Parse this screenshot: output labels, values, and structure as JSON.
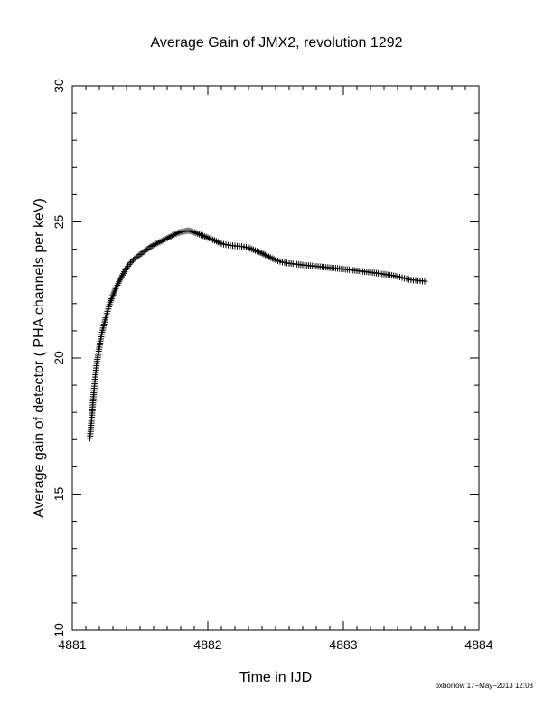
{
  "chart_data": {
    "type": "scatter",
    "title": "Average Gain of JMX2, revolution 1292",
    "xlabel": "Time in IJD",
    "ylabel": "Average gain of detector ( PHA channels per keV)",
    "xlim": [
      4881,
      4884
    ],
    "ylim": [
      10,
      30
    ],
    "x_ticks": [
      "4881",
      "4882",
      "4883",
      "4884"
    ],
    "y_ticks": [
      "10",
      "15",
      "20",
      "25",
      "30"
    ],
    "marker": "+",
    "grid": false,
    "legend": "none",
    "series": [
      {
        "points": [
          [
            4881.13,
            17.05
          ],
          [
            4881.135,
            17.3
          ],
          [
            4881.14,
            17.6
          ],
          [
            4881.145,
            17.9
          ],
          [
            4881.15,
            18.2
          ],
          [
            4881.155,
            18.5
          ],
          [
            4881.16,
            18.8
          ],
          [
            4881.165,
            19.05
          ],
          [
            4881.17,
            19.3
          ],
          [
            4881.175,
            19.55
          ],
          [
            4881.18,
            19.8
          ],
          [
            4881.19,
            20.1
          ],
          [
            4881.2,
            20.4
          ],
          [
            4881.21,
            20.7
          ],
          [
            4881.22,
            20.95
          ],
          [
            4881.235,
            21.25
          ],
          [
            4881.25,
            21.55
          ],
          [
            4881.265,
            21.8
          ],
          [
            4881.28,
            22.05
          ],
          [
            4881.3,
            22.3
          ],
          [
            4881.32,
            22.55
          ],
          [
            4881.345,
            22.8
          ],
          [
            4881.37,
            23.05
          ],
          [
            4881.4,
            23.3
          ],
          [
            4881.43,
            23.5
          ],
          [
            4881.46,
            23.65
          ],
          [
            4881.5,
            23.8
          ],
          [
            4881.54,
            23.95
          ],
          [
            4881.58,
            24.1
          ],
          [
            4881.62,
            24.2
          ],
          [
            4881.66,
            24.3
          ],
          [
            4881.7,
            24.4
          ],
          [
            4881.74,
            24.5
          ],
          [
            4881.78,
            24.6
          ],
          [
            4881.82,
            24.65
          ],
          [
            4881.86,
            24.68
          ],
          [
            4881.9,
            24.62
          ],
          [
            4881.95,
            24.52
          ],
          [
            4882.0,
            24.42
          ],
          [
            4882.05,
            24.32
          ],
          [
            4882.1,
            24.2
          ],
          [
            4882.15,
            24.15
          ],
          [
            4882.2,
            24.12
          ],
          [
            4882.25,
            24.1
          ],
          [
            4882.3,
            24.05
          ],
          [
            4882.35,
            23.95
          ],
          [
            4882.4,
            23.85
          ],
          [
            4882.45,
            23.72
          ],
          [
            4882.5,
            23.6
          ],
          [
            4882.55,
            23.52
          ],
          [
            4882.6,
            23.48
          ],
          [
            4882.7,
            23.42
          ],
          [
            4882.8,
            23.37
          ],
          [
            4882.9,
            23.32
          ],
          [
            4883.0,
            23.27
          ],
          [
            4883.1,
            23.21
          ],
          [
            4883.2,
            23.15
          ],
          [
            4883.3,
            23.08
          ],
          [
            4883.4,
            23.0
          ],
          [
            4883.45,
            22.93
          ],
          [
            4883.5,
            22.87
          ],
          [
            4883.55,
            22.85
          ],
          [
            4883.6,
            22.82
          ]
        ]
      }
    ]
  },
  "footer": "oxborrow 17−May−2013 12:03"
}
